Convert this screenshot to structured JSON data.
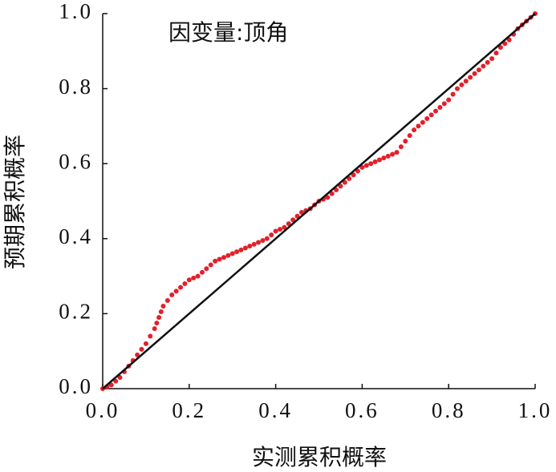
{
  "chart_data": {
    "type": "scatter",
    "annotation": "因变量:顶角",
    "x_label": "实测累积概率",
    "y_label": "预期累积概率",
    "color": "#e3202b",
    "line_color": "#111111",
    "xlim": [
      0,
      1
    ],
    "ylim": [
      0,
      1
    ],
    "xticks": [
      {
        "value": 0,
        "label": "0.0"
      },
      0.2,
      0.4,
      0.6,
      0.8,
      {
        "value": 1,
        "label": "1.0"
      }
    ],
    "yticks": [
      {
        "value": 0,
        "label": "0.0"
      },
      0.2,
      0.4,
      0.6,
      0.8,
      {
        "value": 1,
        "label": "1.0"
      }
    ],
    "reference_line": {
      "x": [
        0,
        1
      ],
      "y": [
        0,
        1
      ]
    },
    "x": [
      0.0,
      0.01,
      0.02,
      0.03,
      0.04,
      0.05,
      0.06,
      0.07,
      0.08,
      0.09,
      0.1,
      0.11,
      0.12,
      0.125,
      0.13,
      0.135,
      0.14,
      0.15,
      0.16,
      0.17,
      0.18,
      0.19,
      0.2,
      0.21,
      0.22,
      0.23,
      0.24,
      0.25,
      0.26,
      0.27,
      0.28,
      0.29,
      0.3,
      0.31,
      0.32,
      0.33,
      0.34,
      0.35,
      0.36,
      0.37,
      0.38,
      0.39,
      0.4,
      0.41,
      0.42,
      0.43,
      0.44,
      0.45,
      0.46,
      0.47,
      0.48,
      0.49,
      0.5,
      0.51,
      0.52,
      0.53,
      0.54,
      0.55,
      0.56,
      0.57,
      0.58,
      0.59,
      0.6,
      0.61,
      0.62,
      0.63,
      0.64,
      0.65,
      0.66,
      0.67,
      0.68,
      0.69,
      0.7,
      0.71,
      0.72,
      0.73,
      0.74,
      0.75,
      0.76,
      0.77,
      0.78,
      0.79,
      0.8,
      0.81,
      0.82,
      0.83,
      0.84,
      0.85,
      0.86,
      0.87,
      0.88,
      0.89,
      0.9,
      0.91,
      0.92,
      0.93,
      0.94,
      0.95,
      0.96,
      0.97,
      0.98,
      0.99,
      1.0
    ],
    "y": [
      0.0,
      0.005,
      0.01,
      0.02,
      0.03,
      0.045,
      0.06,
      0.075,
      0.09,
      0.105,
      0.12,
      0.14,
      0.16,
      0.175,
      0.19,
      0.205,
      0.22,
      0.235,
      0.25,
      0.26,
      0.27,
      0.28,
      0.29,
      0.295,
      0.3,
      0.31,
      0.32,
      0.33,
      0.34,
      0.345,
      0.35,
      0.355,
      0.36,
      0.365,
      0.37,
      0.375,
      0.38,
      0.385,
      0.39,
      0.395,
      0.4,
      0.41,
      0.42,
      0.425,
      0.43,
      0.44,
      0.45,
      0.46,
      0.47,
      0.475,
      0.48,
      0.49,
      0.5,
      0.505,
      0.51,
      0.52,
      0.53,
      0.54,
      0.55,
      0.56,
      0.57,
      0.58,
      0.59,
      0.595,
      0.6,
      0.605,
      0.61,
      0.615,
      0.62,
      0.625,
      0.63,
      0.645,
      0.66,
      0.675,
      0.69,
      0.7,
      0.71,
      0.72,
      0.73,
      0.74,
      0.75,
      0.76,
      0.77,
      0.785,
      0.8,
      0.81,
      0.82,
      0.83,
      0.84,
      0.85,
      0.86,
      0.87,
      0.88,
      0.895,
      0.91,
      0.92,
      0.93,
      0.945,
      0.96,
      0.97,
      0.98,
      0.99,
      1.0
    ]
  }
}
